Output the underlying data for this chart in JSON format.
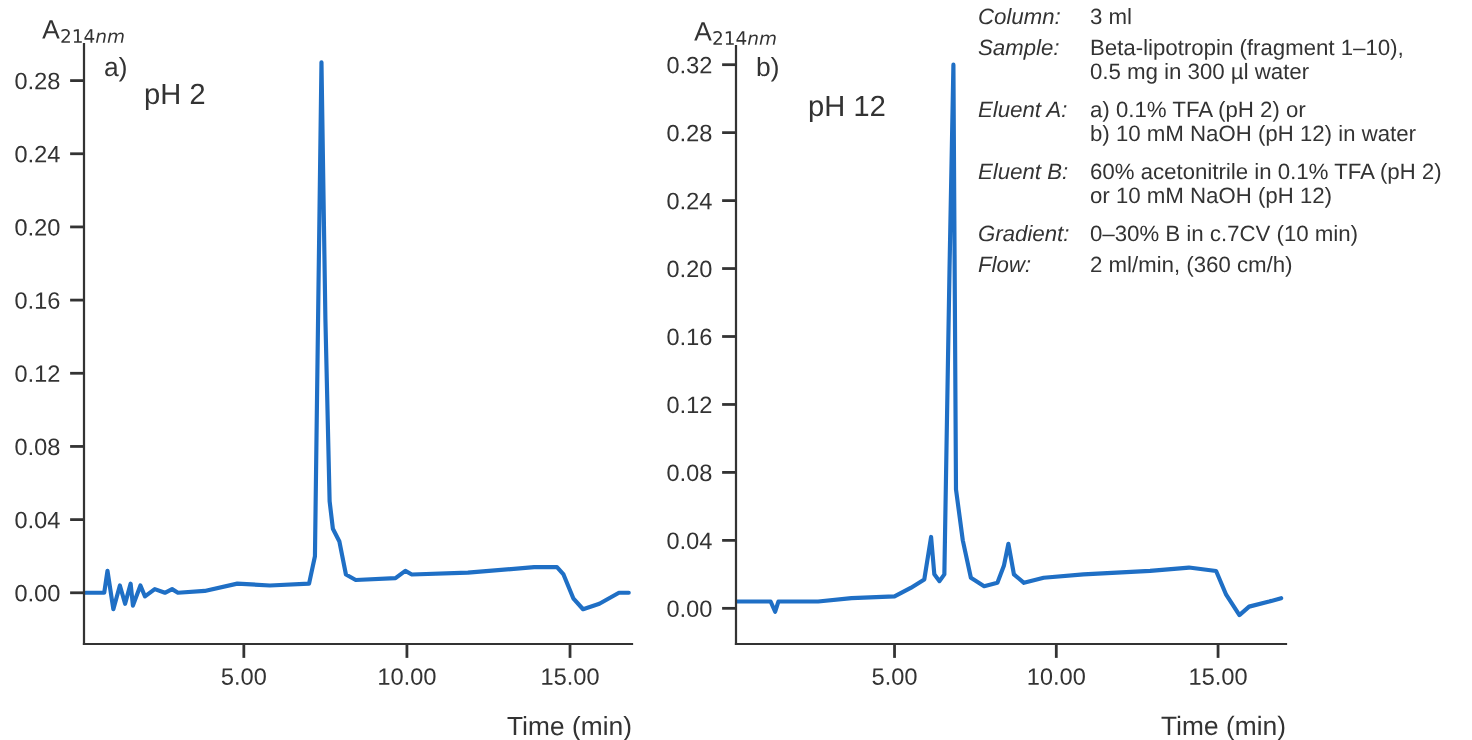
{
  "chart_data": [
    {
      "type": "line",
      "ylabel": "A$_{214nm}$",
      "xlabel": "Time (min)",
      "annotations": [
        "a)",
        "pH 2"
      ],
      "series": [
        {
          "color": "#1f6fc5",
          "x": [
            0.15,
            0.72,
            0.82,
            1.0,
            1.2,
            1.36,
            1.53,
            1.6,
            1.83,
            1.97,
            2.27,
            2.58,
            2.8,
            2.98,
            3.8,
            4.8,
            5.8,
            7.0,
            7.18,
            7.38,
            7.5,
            7.63,
            7.73,
            7.93,
            8.13,
            8.43,
            9.65,
            9.95,
            10.15,
            11.87,
            13.9,
            14.6,
            14.8,
            15.1,
            15.4,
            15.9,
            16.5,
            16.8
          ],
          "values": [
            0.0,
            0.0,
            0.012,
            -0.009,
            0.004,
            -0.006,
            0.005,
            -0.007,
            0.004,
            -0.002,
            0.002,
            0.0,
            0.002,
            0.0,
            0.001,
            0.005,
            0.004,
            0.005,
            0.02,
            0.29,
            0.15,
            0.05,
            0.035,
            0.028,
            0.01,
            0.007,
            0.008,
            0.012,
            0.01,
            0.011,
            0.014,
            0.014,
            0.01,
            -0.003,
            -0.009,
            -0.006,
            0.0,
            0.0
          ]
        }
      ],
      "xlim": [
        0.1,
        16.9
      ],
      "ylim": [
        -0.028,
        0.3
      ],
      "xticks": [
        {
          "value": 5,
          "label": "5.00"
        },
        {
          "value": 10,
          "label": "10.00"
        },
        {
          "value": 15,
          "label": "15.00"
        }
      ],
      "yticks": [
        {
          "value": 0,
          "label": "0.00"
        },
        {
          "value": 0.04,
          "label": "0.04"
        },
        {
          "value": 0.08,
          "label": "0.08"
        },
        {
          "value": 0.12,
          "label": "0.12"
        },
        {
          "value": 0.16,
          "label": "0.16"
        },
        {
          "value": 0.2,
          "label": "0.20"
        },
        {
          "value": 0.24,
          "label": "0.24"
        },
        {
          "value": 0.28,
          "label": "0.28"
        }
      ],
      "grid": false,
      "legend": false
    },
    {
      "type": "line",
      "ylabel": "A$_{214nm}$",
      "xlabel": "Time (min)",
      "annotations": [
        "b)",
        "pH 12",
        "Column:",
        "3 ml",
        "Sample:",
        "Beta-lipotropin (fragment 1–10),\n0.5 mg in 300 µl water",
        "Eluent A:",
        "a) 0.1% TFA (pH 2) or\nb) 10 mM NaOH (pH 12) in water",
        "Eluent B:",
        "60% acetonitrile in 0.1% TFA (pH 2)\nor 10 mM NaOH (pH 12)",
        "Gradient:",
        "0–30% B in c.7CV (10 min)",
        "Flow:",
        "2 ml/min, (360 cm/h)"
      ],
      "series": [
        {
          "color": "#1f6fc5",
          "x": [
            0.1,
            1.17,
            1.31,
            1.41,
            2.64,
            3.67,
            5.0,
            5.5,
            5.92,
            6.13,
            6.23,
            6.39,
            6.54,
            6.7,
            6.82,
            6.9,
            7.11,
            7.36,
            7.77,
            8.18,
            8.38,
            8.52,
            8.69,
            9.0,
            9.61,
            10.84,
            12.9,
            14.1,
            14.94,
            15.25,
            15.66,
            15.96,
            16.58,
            16.95
          ],
          "values": [
            0.004,
            0.004,
            -0.002,
            0.004,
            0.004,
            0.006,
            0.007,
            0.012,
            0.017,
            0.042,
            0.02,
            0.016,
            0.02,
            0.2,
            0.32,
            0.07,
            0.04,
            0.018,
            0.013,
            0.015,
            0.025,
            0.038,
            0.02,
            0.015,
            0.018,
            0.02,
            0.022,
            0.024,
            0.022,
            0.008,
            -0.004,
            0.001,
            0.004,
            0.006
          ]
        }
      ],
      "xlim": [
        0.1,
        17.1
      ],
      "ylim": [
        -0.021,
        0.331
      ],
      "xticks": [
        {
          "value": 5,
          "label": "5.00"
        },
        {
          "value": 10,
          "label": "10.00"
        },
        {
          "value": 15,
          "label": "15.00"
        }
      ],
      "yticks": [
        {
          "value": 0,
          "label": "0.00"
        },
        {
          "value": 0.04,
          "label": "0.04"
        },
        {
          "value": 0.08,
          "label": "0.08"
        },
        {
          "value": 0.12,
          "label": "0.12"
        },
        {
          "value": 0.16,
          "label": "0.16"
        },
        {
          "value": 0.2,
          "label": "0.20"
        },
        {
          "value": 0.24,
          "label": "0.24"
        },
        {
          "value": 0.28,
          "label": "0.28"
        },
        {
          "value": 0.32,
          "label": "0.32"
        }
      ],
      "grid": false,
      "legend": false
    }
  ]
}
